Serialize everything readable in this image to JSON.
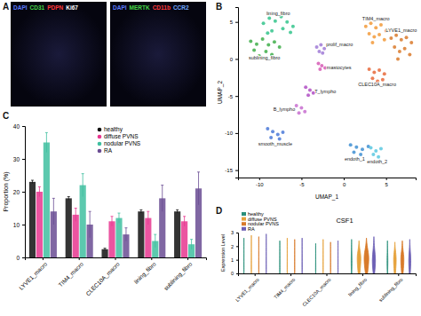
{
  "panel_labels": [
    "A",
    "B",
    "C",
    "D"
  ],
  "images": [
    {
      "channels": [
        {
          "text": "DAPI",
          "color": "#5b7bff"
        },
        {
          "text": "CD31",
          "color": "#46d646"
        },
        {
          "text": "PDPN",
          "color": "#ff3a3a"
        },
        {
          "text": "Ki67",
          "color": "#ffffff"
        }
      ]
    },
    {
      "channels": [
        {
          "text": "DAPI",
          "color": "#5b7bff"
        },
        {
          "text": "MERTK",
          "color": "#46d646"
        },
        {
          "text": "CD11b",
          "color": "#ff3a3a"
        },
        {
          "text": "CCR2",
          "color": "#6fa8ff"
        }
      ]
    }
  ],
  "chart_data": [
    {
      "type": "scatter",
      "x_label": "UMAP_1",
      "y_label": "UMAP_2",
      "xlim": [
        -12.5,
        8.5
      ],
      "ylim": [
        -16,
        7
      ],
      "xticks": [
        -10,
        -5,
        0,
        5
      ],
      "yticks": [
        -15,
        -10,
        -5,
        0,
        5
      ],
      "series": [
        {
          "name": "lining_fibro",
          "color": "#34c48c",
          "x": [
            -9.5,
            -8.8,
            -8.1,
            -7.4,
            -6.7,
            -6.0,
            -8.5,
            -7.2,
            -9.0,
            -6.3
          ],
          "y": [
            4.8,
            5.5,
            5.1,
            5.7,
            5.0,
            4.4,
            3.8,
            4.1,
            3.5,
            3.6
          ]
        },
        {
          "name": "sublining_fibro",
          "color": "#3fae4a",
          "x": [
            -11.0,
            -10.3,
            -9.6,
            -8.9,
            -8.2,
            -10.6,
            -9.2,
            -7.6,
            -10.0,
            -8.5
          ],
          "y": [
            2.4,
            2.0,
            2.7,
            1.9,
            2.3,
            1.2,
            1.0,
            1.6,
            0.4,
            0.6
          ]
        },
        {
          "name": "prolif_macro",
          "color": "#a07ad6",
          "x": [
            -3.2,
            -2.7,
            -2.3,
            -2.9,
            -2.5
          ],
          "y": [
            1.6,
            1.9,
            1.4,
            1.0,
            0.8
          ]
        },
        {
          "name": "mastocytes",
          "color": "#d65ab5",
          "x": [
            -3.0,
            -2.6,
            -2.2,
            -2.8
          ],
          "y": [
            -0.6,
            -0.9,
            -1.2,
            -1.4
          ]
        },
        {
          "name": "T_lympho",
          "color": "#b04fc4",
          "x": [
            -4.5,
            -4.0,
            -3.6,
            -4.2
          ],
          "y": [
            -3.8,
            -4.2,
            -4.6,
            -4.9
          ]
        },
        {
          "name": "B_lympho",
          "color": "#c86fd0",
          "x": [
            -5.6,
            -5.0,
            -4.6,
            -5.3
          ],
          "y": [
            -6.3,
            -6.6,
            -7.1,
            -7.3
          ]
        },
        {
          "name": "smooth_muscle",
          "color": "#4a79d8",
          "x": [
            -9.0,
            -8.4,
            -7.8,
            -7.2,
            -8.6,
            -7.6
          ],
          "y": [
            -9.4,
            -9.8,
            -10.2,
            -9.9,
            -10.6,
            -10.8
          ]
        },
        {
          "name": "endoth_1",
          "color": "#3f8fd2",
          "x": [
            0.8,
            1.5,
            2.2,
            2.9,
            1.2,
            2.0
          ],
          "y": [
            -11.6,
            -11.9,
            -12.2,
            -11.8,
            -12.6,
            -12.9
          ]
        },
        {
          "name": "endoth_2",
          "color": "#5ac8e0",
          "x": [
            3.2,
            3.8,
            4.4,
            3.5,
            4.1
          ],
          "y": [
            -12.0,
            -12.4,
            -12.1,
            -12.9,
            -13.2
          ]
        },
        {
          "name": "TIM4_macro",
          "color": "#f29a3a",
          "x": [
            2.6,
            3.2,
            3.8,
            4.4,
            5.0,
            3.0,
            3.6,
            4.2,
            4.8,
            3.4
          ],
          "y": [
            4.4,
            4.8,
            4.2,
            4.6,
            3.8,
            3.4,
            3.0,
            3.3,
            2.6,
            2.2
          ]
        },
        {
          "name": "LYVE1_macro",
          "color": "#d97a2b",
          "x": [
            5.6,
            6.2,
            6.8,
            7.4,
            8.0,
            6.0,
            6.6,
            7.2,
            7.8,
            6.4
          ],
          "y": [
            2.8,
            3.2,
            2.6,
            2.9,
            2.2,
            1.6,
            1.0,
            1.4,
            0.6,
            0.0
          ]
        },
        {
          "name": "CLEC10A_macro",
          "color": "#e8683a",
          "x": [
            3.0,
            3.6,
            4.2,
            4.8,
            3.4,
            4.0,
            4.6
          ],
          "y": [
            -1.4,
            -1.8,
            -1.5,
            -2.0,
            -2.6,
            -3.0,
            -2.8
          ]
        }
      ]
    },
    {
      "type": "bar",
      "y_label": "Proportion (%)",
      "categories": [
        "LYVE1_macro",
        "TIM4_macro",
        "CLEC10A_macro",
        "lining_fibro",
        "sublining_fibro"
      ],
      "ylim": [
        0,
        40
      ],
      "yticks": [
        0,
        10,
        20,
        30,
        40
      ],
      "legend": "top",
      "series": [
        {
          "name": "healthy",
          "color": "#111111",
          "values": [
            23,
            18,
            2.5,
            14,
            14
          ],
          "errors": [
            0.5,
            0.5,
            0.3,
            0.5,
            0.5
          ]
        },
        {
          "name": "diffuse PVNS",
          "color": "#e8368f",
          "values": [
            20,
            13,
            11,
            12,
            11
          ],
          "errors": [
            1.5,
            2,
            1.5,
            2,
            1.5
          ]
        },
        {
          "name": "nodular PVNS",
          "color": "#3fbfa0",
          "values": [
            35,
            22,
            12,
            5,
            4
          ],
          "errors": [
            3,
            3.5,
            1.5,
            2,
            1.5
          ]
        },
        {
          "name": "RA",
          "color": "#6a4c93",
          "values": [
            14,
            10,
            7,
            18,
            21
          ],
          "errors": [
            4,
            4,
            2,
            4,
            5
          ]
        }
      ]
    },
    {
      "type": "violin",
      "title": "CSF1",
      "y_label": "Expression Level",
      "categories": [
        "LYVE1_macro",
        "TIM4_macro",
        "CLEC10A_macro",
        "lining_fibro",
        "sublining_fibro"
      ],
      "ylim": [
        0,
        3
      ],
      "yticks": [
        0,
        1,
        2,
        3
      ],
      "legend": "top-left",
      "series": [
        {
          "name": "healthy",
          "color": "#2a8f7a",
          "values": [
            2.6,
            2.4,
            2.2,
            2.5,
            2.4
          ],
          "peak": [
            0.3,
            0.3,
            0.3,
            1.0,
            1.0
          ],
          "density": [
            0.05,
            0.05,
            0.05,
            0.15,
            0.15
          ]
        },
        {
          "name": "diffuse PVNS",
          "color": "#e6a23c",
          "values": [
            2.8,
            2.6,
            2.5,
            2.4,
            2.3
          ],
          "peak": [
            0.3,
            0.3,
            0.3,
            1.2,
            1.1
          ],
          "density": [
            0.05,
            0.05,
            0.05,
            0.7,
            0.5
          ]
        },
        {
          "name": "nodular PVNS",
          "color": "#d87a2a",
          "values": [
            2.7,
            2.5,
            2.3,
            2.6,
            2.4
          ],
          "peak": [
            0.3,
            0.3,
            0.3,
            1.2,
            1.1
          ],
          "density": [
            0.05,
            0.05,
            0.05,
            0.9,
            0.6
          ]
        },
        {
          "name": "RA",
          "color": "#6c5fb5",
          "values": [
            2.9,
            2.6,
            2.4,
            2.7,
            2.5
          ],
          "peak": [
            0.3,
            0.3,
            0.3,
            1.0,
            1.0
          ],
          "density": [
            0.05,
            0.05,
            0.05,
            0.6,
            0.4
          ]
        }
      ]
    }
  ]
}
